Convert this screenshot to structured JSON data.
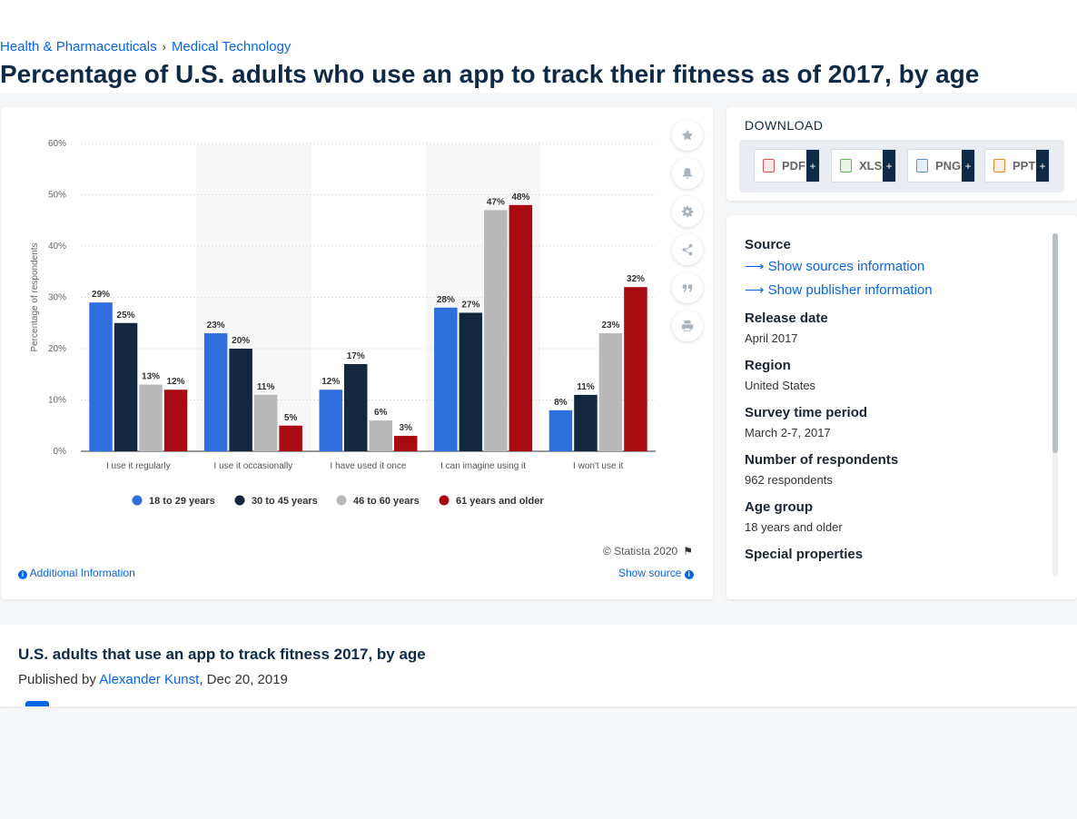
{
  "breadcrumb": {
    "items": [
      "Health & Pharmaceuticals",
      "Medical Technology"
    ],
    "separator": "›"
  },
  "page_title": "Percentage of U.S. adults who use an app to track their fitness as of 2017, by age",
  "chart_data": {
    "type": "bar",
    "title": "",
    "xlabel": "",
    "ylabel": "Percentage of respondents",
    "ylim": [
      0,
      60
    ],
    "yticks": [
      "0%",
      "10%",
      "20%",
      "30%",
      "40%",
      "50%",
      "60%"
    ],
    "grid": true,
    "legend_position": "bottom",
    "categories": [
      "I use it regularly",
      "I use it occasionally",
      "I have used it once",
      "I can imagine using it",
      "I won't use it"
    ],
    "series": [
      {
        "name": "18 to 29 years",
        "color": "#2f6fdd",
        "values": [
          29,
          23,
          12,
          28,
          8
        ]
      },
      {
        "name": "30 to 45 years",
        "color": "#13283f",
        "values": [
          25,
          20,
          17,
          27,
          11
        ]
      },
      {
        "name": "46 to 60 years",
        "color": "#b9b9b9",
        "values": [
          13,
          11,
          6,
          47,
          23
        ]
      },
      {
        "name": "61 years and older",
        "color": "#a80a12",
        "values": [
          12,
          5,
          3,
          48,
          32
        ]
      }
    ]
  },
  "chart_footer": {
    "copyright": "© Statista 2020",
    "additional_info": "Additional Information",
    "show_source": "Show source"
  },
  "side_icons": [
    "star-icon",
    "bell-icon",
    "gear-icon",
    "share-icon",
    "quote-icon",
    "print-icon"
  ],
  "download": {
    "title": "DOWNLOAD",
    "buttons": [
      {
        "label": "PDF",
        "icon": "pdf-file-icon",
        "color": "#d9534f"
      },
      {
        "label": "XLS",
        "icon": "xls-file-icon",
        "color": "#5cb85c"
      },
      {
        "label": "PNG",
        "icon": "png-file-icon",
        "color": "#5b8fd9"
      },
      {
        "label": "PPT",
        "icon": "ppt-file-icon",
        "color": "#e8872b"
      }
    ],
    "plus": "+"
  },
  "info": {
    "source_heading": "Source",
    "show_sources": "Show sources information",
    "show_publisher": "Show publisher information",
    "items": [
      {
        "label": "Release date",
        "value": "April 2017"
      },
      {
        "label": "Region",
        "value": "United States"
      },
      {
        "label": "Survey time period",
        "value": "March 2-7, 2017"
      },
      {
        "label": "Number of respondents",
        "value": "962 respondents"
      },
      {
        "label": "Age group",
        "value": "18 years and older"
      },
      {
        "label": "Special properties",
        "value": ""
      }
    ]
  },
  "publication": {
    "title": "U.S. adults that use an app to track fitness 2017, by age",
    "published_by_prefix": "Published by",
    "author": "Alexander Kunst",
    "date": ", Dec 20, 2019"
  }
}
